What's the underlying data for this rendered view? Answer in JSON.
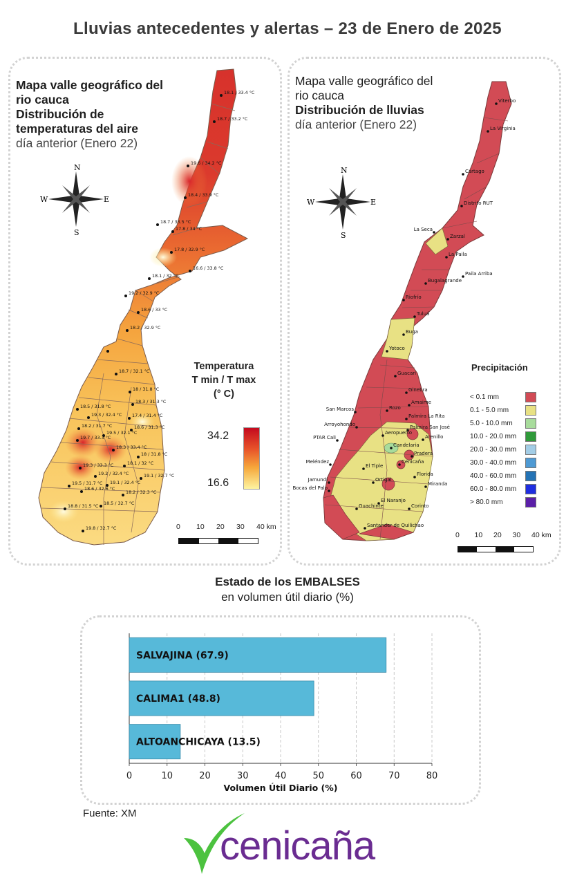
{
  "main_title": "Lluvias antecedentes y alertas – 23 de Enero de 2025",
  "temp_map": {
    "title_line1": "Mapa valle geográfico del",
    "title_line2": "rio cauca",
    "title_line3": "Distribución de",
    "title_line4": "temperaturas del aire",
    "title_line5": "día anterior (Enero 22)",
    "legend_title_1": "Temperatura",
    "legend_title_2": "T min / T max",
    "legend_title_3": "(° C)",
    "legend_max": "34.2",
    "legend_min": "16.6",
    "stations": [
      {
        "label": "18.1 / 33.4 °C"
      },
      {
        "label": "18.7 / 33.2 °C"
      },
      {
        "label": "19.6 / 34.2 °C"
      },
      {
        "label": "18.4 / 33.9 °C"
      },
      {
        "label": "18.7 / 33.5 °C"
      },
      {
        "label": "17.8 / 34 °C"
      },
      {
        "label": "17.8 / 32.9 °C"
      },
      {
        "label": "16.6 / 33.8 °C"
      },
      {
        "label": "18.1 / 32 °C"
      },
      {
        "label": "19.2 / 32.9 °C"
      },
      {
        "label": "18.6 / 33 °C"
      },
      {
        "label": "18.2 / 32.9 °C"
      },
      {
        "label": "18.7 / 32.1 °C"
      },
      {
        "label": "18 / 31.8 °C"
      },
      {
        "label": "18.3 / 31.3 °C"
      },
      {
        "label": "18.5 / 31.8 °C"
      },
      {
        "label": "19.3 / 32.4 °C"
      },
      {
        "label": "17.4 / 31.4 °C"
      },
      {
        "label": "18.2 / 31.7 °C"
      },
      {
        "label": "19.5 / 32.1 °C"
      },
      {
        "label": "18.6 / 31.3 °C"
      },
      {
        "label": "19.7 / 33.3 °C"
      },
      {
        "label": "18.3 / 33.4 °C"
      },
      {
        "label": "18.1 / 32 °C"
      },
      {
        "label": "18 / 31.8 °C"
      },
      {
        "label": "19.3 / 33.3 °C"
      },
      {
        "label": "19.2 / 32.4 °C"
      },
      {
        "label": "19.1 / 32.7 °C"
      },
      {
        "label": "19.5 / 31.7 °C"
      },
      {
        "label": "18.6 / 32.6 °C"
      },
      {
        "label": "19.1 / 32.4 °C"
      },
      {
        "label": "18.2 / 32.3 °C"
      },
      {
        "label": "18.8 / 31.5 °C"
      },
      {
        "label": "18.5 / 32.7 °C"
      },
      {
        "label": "19.8 / 32.7 °C"
      }
    ]
  },
  "rain_map": {
    "title_line1": "Mapa valle geográfico del",
    "title_line2": "rio cauca",
    "title_line3": "Distribución de lluvias",
    "title_line4": "día anterior (Enero 22)",
    "legend_title": "Precipitación",
    "legend": [
      {
        "label": "< 0.1 mm",
        "color": "#d24b55"
      },
      {
        "label": "0.1 - 5.0 mm",
        "color": "#e8e184"
      },
      {
        "label": "5.0 - 10.0 mm",
        "color": "#a8dc9c"
      },
      {
        "label": "10.0 - 20.0 mm",
        "color": "#2f9a3a"
      },
      {
        "label": "20.0 - 30.0 mm",
        "color": "#a3cde6"
      },
      {
        "label": "30.0 - 40.0 mm",
        "color": "#4e9ad4"
      },
      {
        "label": "40.0 - 60.0 mm",
        "color": "#2473b5"
      },
      {
        "label": "60.0 - 80.0 mm",
        "color": "#1f2ee0"
      },
      {
        "label": "> 80.0 mm",
        "color": "#5b1fa8"
      }
    ],
    "stations": [
      {
        "label": "Viterbo"
      },
      {
        "label": "La Virginia"
      },
      {
        "label": "Cartago"
      },
      {
        "label": "Distrito RUT"
      },
      {
        "label": "La Seca"
      },
      {
        "label": "Zarzal"
      },
      {
        "label": "La Paila"
      },
      {
        "label": "Paila Arriba"
      },
      {
        "label": "Bugalagrande"
      },
      {
        "label": "Riofrío"
      },
      {
        "label": "Tuluá"
      },
      {
        "label": "Buga"
      },
      {
        "label": "Yotoco"
      },
      {
        "label": "Guacarí"
      },
      {
        "label": "Ginebra"
      },
      {
        "label": "Amaime"
      },
      {
        "label": "San Marcos"
      },
      {
        "label": "Rozo"
      },
      {
        "label": "Palmira La Rita"
      },
      {
        "label": "Arroyohondo"
      },
      {
        "label": "Palmira San José"
      },
      {
        "label": "Aeropuerto"
      },
      {
        "label": "Arenillo"
      },
      {
        "label": "PTAR Cali"
      },
      {
        "label": "Candelaria"
      },
      {
        "label": "Pradera"
      },
      {
        "label": "Cenicaña"
      },
      {
        "label": "Meléndez"
      },
      {
        "label": "El Tiple"
      },
      {
        "label": "Florida"
      },
      {
        "label": "Jamundí"
      },
      {
        "label": "Bocas del Palo"
      },
      {
        "label": "Ortigal"
      },
      {
        "label": "Miranda"
      },
      {
        "label": "El Naranjo"
      },
      {
        "label": "Guachinte"
      },
      {
        "label": "Corinto"
      },
      {
        "label": "Santander de Quilichao"
      }
    ]
  },
  "compass": {
    "n": "N",
    "s": "S",
    "e": "E",
    "w": "W"
  },
  "scale_labels": [
    "0",
    "10",
    "20",
    "30",
    "40 km"
  ],
  "chart_title_bold": "Estado de los EMBALSES",
  "chart_subtitle": "en volumen útil diario (%)",
  "chart_data": {
    "type": "bar",
    "orientation": "horizontal",
    "categories": [
      "SALVAJINA (67.9)",
      "CALIMA1 (48.8)",
      "ALTOANCHICAYA (13.5)"
    ],
    "values": [
      67.9,
      48.8,
      13.5
    ],
    "xlabel": "Volumen Útil Diario (%)",
    "xlim": [
      0,
      80
    ],
    "xticks": [
      "0",
      "10",
      "20",
      "30",
      "40",
      "50",
      "60",
      "70",
      "80"
    ],
    "grid": "vertical dashed",
    "bar_color": "#57b9d9"
  },
  "source": "Fuente: XM",
  "logo_text": "cenicaña",
  "colors": {
    "logo_green": "#4cc23f",
    "logo_purple": "#6a2c91"
  }
}
